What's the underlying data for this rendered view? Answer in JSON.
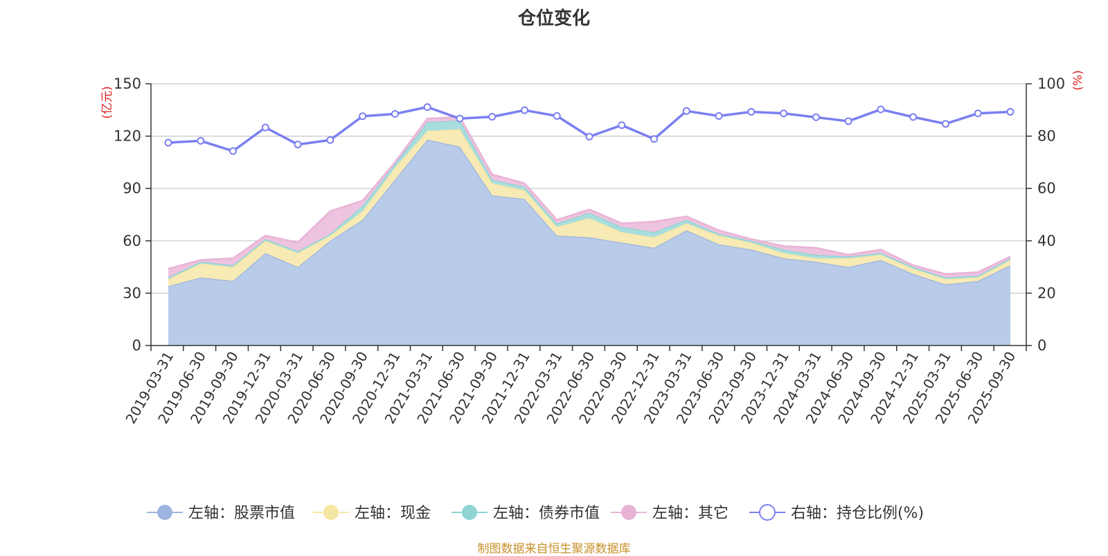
{
  "chart_data": {
    "type": "area",
    "title": "仓位变化",
    "categories": [
      "2019-03-31",
      "2019-06-30",
      "2019-09-30",
      "2019-12-31",
      "2020-03-31",
      "2020-06-30",
      "2020-09-30",
      "2020-12-31",
      "2021-03-31",
      "2021-06-30",
      "2021-09-30",
      "2021-12-31",
      "2022-03-31",
      "2022-06-30",
      "2022-09-30",
      "2022-12-31",
      "2023-03-31",
      "2023-06-30",
      "2023-09-30",
      "2023-12-31",
      "2024-03-31",
      "2024-06-30",
      "2024-09-30",
      "2024-12-31",
      "2025-03-31",
      "2025-06-30",
      "2025-09-30"
    ],
    "left_axis": {
      "unit": "(亿元)",
      "min": 0,
      "max": 150,
      "ticks": [
        0,
        30,
        60,
        90,
        120,
        150
      ]
    },
    "right_axis": {
      "unit": "(%)",
      "min": 0,
      "max": 100,
      "ticks": [
        0,
        20,
        40,
        60,
        80,
        100
      ]
    },
    "stacked_series": [
      {
        "name": "左轴：股票市值",
        "color": "#9db4df",
        "fill": "#b8cbe9",
        "values": [
          34,
          39,
          37,
          53,
          45,
          60,
          72,
          95,
          118,
          114,
          86,
          84,
          63,
          62,
          59,
          56,
          66,
          58,
          55,
          50,
          48,
          45,
          49,
          41,
          35,
          37,
          46
        ]
      },
      {
        "name": "左轴：现金",
        "color": "#f5e6a3",
        "fill": "#f8eab4",
        "values": [
          4,
          8,
          8,
          7,
          8,
          3,
          5,
          7,
          5,
          10,
          7,
          5,
          5,
          11,
          6,
          6,
          4,
          5,
          4,
          3,
          2,
          5,
          3,
          3,
          3,
          2,
          3
        ]
      },
      {
        "name": "左轴：债券市值",
        "color": "#8fd3d3",
        "fill": "#a8dede",
        "values": [
          1,
          1,
          1,
          1,
          1,
          1,
          3,
          2,
          5,
          5,
          2,
          2,
          2,
          3,
          3,
          3,
          2,
          1,
          1,
          2,
          2,
          1,
          1,
          1,
          1,
          1,
          1
        ]
      },
      {
        "name": "左轴：其它",
        "color": "#e8b4d6",
        "fill": "#eec3df",
        "values": [
          5,
          1,
          4,
          2,
          5,
          13,
          3,
          1,
          2,
          2,
          3,
          2,
          2,
          2,
          2,
          6,
          2,
          2,
          1,
          2,
          4,
          1,
          2,
          1,
          2,
          2,
          1
        ]
      }
    ],
    "line_series": {
      "name": "右轴：持仓比例(%)",
      "color": "#7b7ff0",
      "axis": "right",
      "values": [
        77.5,
        78.2,
        74.3,
        83.3,
        76.8,
        78.5,
        87.6,
        88.5,
        91.1,
        86.7,
        87.4,
        89.9,
        87.7,
        79.8,
        84.2,
        78.9,
        89.6,
        87.7,
        89.3,
        88.7,
        87.2,
        85.7,
        90.2,
        87.3,
        84.7,
        88.7,
        89.3
      ]
    },
    "legend_position": "bottom-center"
  },
  "source_note": "制图数据来自恒生聚源数据库"
}
